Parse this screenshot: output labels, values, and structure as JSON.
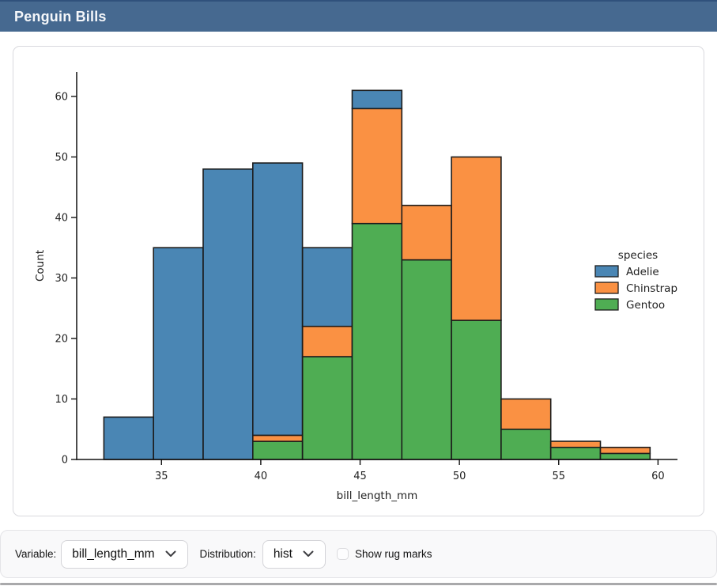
{
  "header": {
    "title": "Penguin Bills"
  },
  "controls": {
    "variable_label": "Variable:",
    "variable_value": "bill_length_mm",
    "distribution_label": "Distribution:",
    "distribution_value": "hist",
    "rug_label": "Show rug marks",
    "rug_checked": false
  },
  "colors": {
    "header_bg": "#466990",
    "adelie": "#4a86b4",
    "chinstrap": "#fa9143",
    "gentoo": "#4fad53",
    "bar_edge": "#1c1c1c"
  },
  "chart_data": {
    "type": "bar",
    "subtype": "stacked-histogram",
    "title": "",
    "xlabel": "bill_length_mm",
    "ylabel": "Count",
    "bin_edges": [
      32.1,
      34.6,
      37.1,
      39.6,
      42.1,
      44.6,
      47.1,
      49.6,
      52.1,
      54.6,
      57.1,
      59.6
    ],
    "series": [
      {
        "name": "Adelie",
        "color": "#4a86b4",
        "values": [
          7,
          35,
          48,
          45,
          13,
          3,
          0,
          0,
          0,
          0,
          0
        ]
      },
      {
        "name": "Chinstrap",
        "color": "#fa9143",
        "values": [
          0,
          0,
          0,
          1,
          5,
          19,
          9,
          27,
          5,
          1,
          1
        ]
      },
      {
        "name": "Gentoo",
        "color": "#4fad53",
        "values": [
          0,
          0,
          0,
          3,
          17,
          39,
          33,
          23,
          5,
          2,
          1
        ]
      }
    ],
    "stack_order": [
      "Gentoo",
      "Chinstrap",
      "Adelie"
    ],
    "bar_totals": [
      7,
      35,
      48,
      49,
      35,
      61,
      42,
      50,
      10,
      3,
      2
    ],
    "legend": {
      "title": "species",
      "position": "right",
      "entries": [
        "Adelie",
        "Chinstrap",
        "Gentoo"
      ]
    },
    "xticks": [
      35,
      40,
      45,
      50,
      55,
      60
    ],
    "yticks": [
      0,
      10,
      20,
      30,
      40,
      50,
      60
    ],
    "xlim": [
      30.73,
      60.98
    ],
    "ylim": [
      0,
      64.05
    ],
    "grid": false
  }
}
